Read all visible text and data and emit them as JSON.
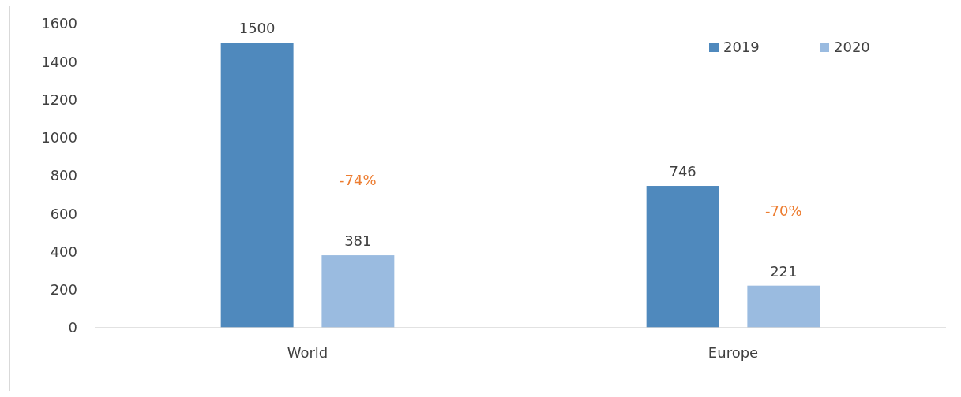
{
  "chart_data": {
    "type": "bar",
    "categories": [
      "World",
      "Europe"
    ],
    "series": [
      {
        "name": "2019",
        "color": "#4f89bd",
        "values": [
          1500,
          746
        ]
      },
      {
        "name": "2020",
        "color": "#9abbe0",
        "values": [
          381,
          221
        ]
      }
    ],
    "ylim": [
      0,
      1600
    ],
    "yticks": [
      0,
      200,
      400,
      600,
      800,
      1000,
      1200,
      1400,
      1600
    ],
    "data_labels": true,
    "legend": "top right",
    "grid": false,
    "annotations": [
      "-74%",
      "-70%"
    ]
  }
}
